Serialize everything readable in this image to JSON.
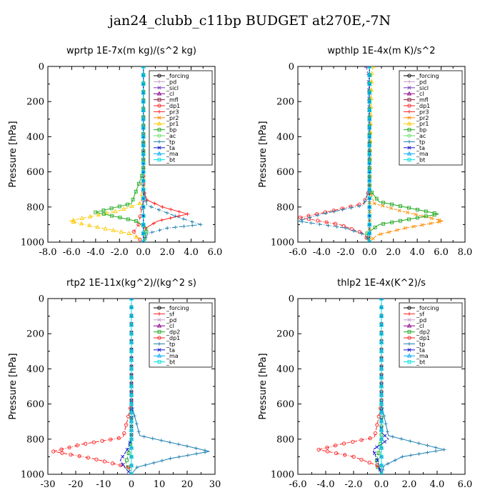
{
  "title": "jan24_clubb_c11bp  BUDGET at270E,-7N",
  "colors": {
    "_forcing": "#000000",
    "_pd": "#c69cc6",
    "_sicl": "#7a3db8",
    "_cl": "#8b008b",
    "_mfl": "#8b1a3a",
    "_dp1": "#ff2020",
    "_pr3": "#ff2020",
    "_pr2": "#ff8c00",
    "_pr1": "#ffc800",
    "_bp": "#22aa22",
    "_ac": "#66dd66",
    "_tp": "#1e7fb0",
    "_ta": "#1010cc",
    "_ma": "#00aaff",
    "_bt": "#00dddd",
    "_sf": "#ff2020",
    "_dp2": "#22aa22"
  },
  "chart_data": [
    {
      "type": "line",
      "title": "wprtp  1E-7x(m kg)/(s^2 kg)",
      "ylabel": "Pressure [hPa]",
      "xlim": [
        -8,
        6
      ],
      "ylim": [
        1000,
        0
      ],
      "xticks": [
        "-8.0",
        "-6.0",
        "-4.0",
        "-2.0",
        "0.0",
        "2.0",
        "4.0",
        "6.0"
      ],
      "yticks": [
        "0",
        "200",
        "400",
        "600",
        "800",
        "1000"
      ],
      "legend_position": "top-right",
      "legend": [
        "_forcing",
        "_pd",
        "_sicl",
        "_cl",
        "_mfl",
        "_dp1",
        "_pr3",
        "_pr2",
        "_pr1",
        "_bp",
        "_ac",
        "_tp",
        "_ta",
        "_ma",
        "_bt"
      ],
      "series": [
        {
          "name": "_forcing",
          "x": [
            0,
            0,
            0,
            0,
            0,
            0,
            0
          ],
          "y": [
            0,
            200,
            400,
            600,
            800,
            900,
            1000
          ]
        },
        {
          "name": "_pd",
          "x": [
            0,
            0,
            0,
            0,
            0
          ],
          "y": [
            0,
            300,
            600,
            900,
            1000
          ]
        },
        {
          "name": "_sicl",
          "x": [
            0,
            0,
            0,
            0,
            0
          ],
          "y": [
            0,
            300,
            600,
            900,
            1000
          ]
        },
        {
          "name": "_cl",
          "x": [
            0,
            0,
            0,
            0,
            0
          ],
          "y": [
            0,
            300,
            600,
            900,
            1000
          ]
        },
        {
          "name": "_mfl",
          "x": [
            0,
            0,
            0,
            0,
            0
          ],
          "y": [
            0,
            300,
            600,
            900,
            1000
          ]
        },
        {
          "name": "_dp1",
          "x": [
            0,
            0,
            0,
            -0.4,
            -0.8,
            -0.6,
            -0.3,
            0
          ],
          "y": [
            0,
            600,
            760,
            900,
            940,
            965,
            985,
            1000
          ]
        },
        {
          "name": "_pr3",
          "x": [
            0,
            0,
            0.3,
            1.6,
            3.7,
            1.2,
            0.2,
            0,
            0
          ],
          "y": [
            0,
            700,
            760,
            800,
            840,
            880,
            920,
            960,
            1000
          ]
        },
        {
          "name": "_pr2",
          "x": [
            0,
            0,
            0,
            0,
            0
          ],
          "y": [
            0,
            300,
            600,
            900,
            1000
          ]
        },
        {
          "name": "_pr1",
          "x": [
            0,
            0,
            -0.3,
            -2.0,
            -6.2,
            -3.5,
            -1.2,
            -0.3,
            0
          ],
          "y": [
            0,
            700,
            780,
            820,
            880,
            920,
            950,
            980,
            1000
          ]
        },
        {
          "name": "_bp",
          "x": [
            0,
            0,
            -1.0,
            -4.0,
            -0.6,
            0.3,
            0.2,
            0
          ],
          "y": [
            0,
            600,
            780,
            830,
            880,
            920,
            960,
            1000
          ]
        },
        {
          "name": "_ac",
          "x": [
            0,
            0,
            0,
            0,
            0
          ],
          "y": [
            0,
            300,
            600,
            900,
            1000
          ]
        },
        {
          "name": "_tp",
          "x": [
            0,
            0,
            0.3,
            3.0,
            4.8,
            2.0,
            0.4,
            0
          ],
          "y": [
            0,
            700,
            790,
            860,
            900,
            920,
            950,
            1000
          ]
        },
        {
          "name": "_ta",
          "x": [
            0,
            0,
            0,
            0,
            0
          ],
          "y": [
            0,
            300,
            600,
            900,
            1000
          ]
        },
        {
          "name": "_ma",
          "x": [
            0,
            0,
            0,
            0,
            0
          ],
          "y": [
            0,
            300,
            600,
            900,
            1000
          ]
        },
        {
          "name": "_bt",
          "x": [
            0,
            0,
            0,
            0,
            0
          ],
          "y": [
            0,
            300,
            600,
            900,
            1000
          ]
        }
      ]
    },
    {
      "type": "line",
      "title": "wpthlp  1E-4x(m K)/s^2",
      "ylabel": "Pressure [hPa]",
      "xlim": [
        -6,
        8
      ],
      "ylim": [
        1000,
        0
      ],
      "xticks": [
        "-6.0",
        "-4.0",
        "-2.0",
        "0.0",
        "2.0",
        "4.0",
        "6.0",
        "8.0"
      ],
      "yticks": [
        "0",
        "200",
        "400",
        "600",
        "800",
        "1000"
      ],
      "legend_position": "top-right",
      "legend": [
        "_forcing",
        "_pd",
        "_sicl",
        "_cl",
        "_mfl",
        "_dp1",
        "_pr3",
        "_pr2",
        "_pr1",
        "_bp",
        "_ac",
        "_tp",
        "_ta",
        "_ma",
        "_bt"
      ],
      "series": [
        {
          "name": "_forcing",
          "x": [
            0,
            0,
            0,
            0,
            0
          ],
          "y": [
            0,
            300,
            600,
            900,
            1000
          ]
        },
        {
          "name": "_pd",
          "x": [
            0,
            0,
            0,
            0,
            0
          ],
          "y": [
            0,
            300,
            600,
            900,
            1000
          ]
        },
        {
          "name": "_sicl",
          "x": [
            -0.3,
            -0.1,
            0,
            0,
            0
          ],
          "y": [
            0,
            40,
            300,
            700,
            1000
          ]
        },
        {
          "name": "_cl",
          "x": [
            0,
            0,
            0,
            0,
            0
          ],
          "y": [
            0,
            300,
            600,
            900,
            1000
          ]
        },
        {
          "name": "_mfl",
          "x": [
            0,
            0,
            0,
            0,
            0
          ],
          "y": [
            0,
            300,
            600,
            900,
            1000
          ]
        },
        {
          "name": "_dp1",
          "x": [
            0,
            0,
            -0.5,
            -3.0,
            -5.8,
            -2.5,
            -0.5,
            0
          ],
          "y": [
            0,
            700,
            780,
            820,
            860,
            900,
            950,
            1000
          ]
        },
        {
          "name": "_pr3",
          "x": [
            0,
            0,
            0,
            0,
            0
          ],
          "y": [
            0,
            300,
            600,
            900,
            1000
          ]
        },
        {
          "name": "_pr2",
          "x": [
            0,
            0,
            0.4,
            2.5,
            6.2,
            3.0,
            0.6,
            0
          ],
          "y": [
            0,
            700,
            780,
            820,
            880,
            920,
            960,
            1000
          ]
        },
        {
          "name": "_pr1",
          "x": [
            0.3,
            0.2,
            0.1,
            0,
            0
          ],
          "y": [
            0,
            40,
            300,
            700,
            1000
          ]
        },
        {
          "name": "_bp",
          "x": [
            0,
            0,
            0.8,
            5.8,
            0.8,
            -0.2,
            0
          ],
          "y": [
            0,
            700,
            770,
            840,
            900,
            950,
            1000
          ]
        },
        {
          "name": "_ac",
          "x": [
            0,
            0,
            0,
            0,
            0
          ],
          "y": [
            0,
            300,
            600,
            900,
            1000
          ]
        },
        {
          "name": "_tp",
          "x": [
            0,
            0,
            -0.5,
            -4.0,
            -6.0,
            -2.0,
            -0.3,
            0
          ],
          "y": [
            0,
            700,
            790,
            840,
            880,
            920,
            960,
            1000
          ]
        },
        {
          "name": "_ta",
          "x": [
            0,
            0,
            0,
            0,
            0
          ],
          "y": [
            0,
            300,
            600,
            900,
            1000
          ]
        },
        {
          "name": "_ma",
          "x": [
            0,
            0,
            0,
            0,
            0
          ],
          "y": [
            0,
            300,
            600,
            900,
            1000
          ]
        },
        {
          "name": "_bt",
          "x": [
            0,
            0,
            0,
            0,
            0
          ],
          "y": [
            0,
            300,
            600,
            900,
            1000
          ]
        }
      ]
    },
    {
      "type": "line",
      "title": "rtp2  1E-11x(kg^2)/(kg^2 s)",
      "ylabel": "Pressure [hPa]",
      "xlim": [
        -30,
        30
      ],
      "ylim": [
        1000,
        0
      ],
      "xticks": [
        "-30",
        "-20",
        "-10",
        "0",
        "10",
        "20",
        "30"
      ],
      "yticks": [
        "0",
        "200",
        "400",
        "600",
        "800",
        "1000"
      ],
      "legend_position": "top-right",
      "legend": [
        "_forcing",
        "_sf",
        "_pd",
        "_cl",
        "_dp2",
        "_dp1",
        "_tp",
        "_ta",
        "_ma",
        "_bt"
      ],
      "series": [
        {
          "name": "_forcing",
          "x": [
            0,
            0,
            0,
            0,
            0,
            0,
            0
          ],
          "y": [
            0,
            200,
            400,
            600,
            800,
            900,
            1000
          ]
        },
        {
          "name": "_sf",
          "x": [
            0,
            0,
            0,
            0,
            0
          ],
          "y": [
            0,
            300,
            600,
            900,
            1000
          ]
        },
        {
          "name": "_pd",
          "x": [
            0,
            0,
            0,
            0,
            0
          ],
          "y": [
            0,
            300,
            600,
            900,
            1000
          ]
        },
        {
          "name": "_cl",
          "x": [
            0,
            0,
            0,
            0,
            0
          ],
          "y": [
            0,
            300,
            600,
            900,
            1000
          ]
        },
        {
          "name": "_dp2",
          "x": [
            0,
            0,
            -1,
            -2,
            -0.5,
            0
          ],
          "y": [
            0,
            800,
            880,
            940,
            980,
            1000
          ]
        },
        {
          "name": "_dp1",
          "x": [
            0,
            0,
            -3,
            -18,
            -28,
            -14,
            -1,
            0
          ],
          "y": [
            0,
            600,
            790,
            830,
            870,
            910,
            960,
            1000
          ]
        },
        {
          "name": "_tp",
          "x": [
            0,
            0,
            3,
            20,
            28,
            14,
            2,
            0
          ],
          "y": [
            0,
            600,
            780,
            840,
            870,
            910,
            960,
            1000
          ]
        },
        {
          "name": "_ta",
          "x": [
            0,
            0,
            -1.5,
            -4,
            -2,
            0
          ],
          "y": [
            0,
            800,
            860,
            920,
            970,
            1000
          ]
        },
        {
          "name": "_ma",
          "x": [
            0,
            0,
            0,
            0,
            0
          ],
          "y": [
            0,
            300,
            600,
            900,
            1000
          ]
        },
        {
          "name": "_bt",
          "x": [
            0,
            0,
            0,
            0,
            0
          ],
          "y": [
            0,
            300,
            600,
            900,
            1000
          ]
        }
      ]
    },
    {
      "type": "line",
      "title": "thlp2  1E-4x(K^2)/s",
      "ylabel": "Pressure [hPa]",
      "xlim": [
        -6,
        6
      ],
      "ylim": [
        1000,
        0
      ],
      "xticks": [
        "-6.0",
        "-4.0",
        "-2.0",
        "0.0",
        "2.0",
        "4.0",
        "6.0"
      ],
      "yticks": [
        "0",
        "200",
        "400",
        "600",
        "800",
        "1000"
      ],
      "legend_position": "top-right",
      "legend": [
        "_forcing",
        "_sf",
        "_pd",
        "_cl",
        "_dp2",
        "_dp1",
        "_tp",
        "_ta",
        "_ma",
        "_bt"
      ],
      "series": [
        {
          "name": "_forcing",
          "x": [
            0,
            0,
            0,
            0,
            0,
            0,
            0
          ],
          "y": [
            0,
            200,
            400,
            600,
            800,
            900,
            1000
          ]
        },
        {
          "name": "_sf",
          "x": [
            0,
            0,
            0,
            0,
            0
          ],
          "y": [
            0,
            300,
            600,
            900,
            1000
          ]
        },
        {
          "name": "_pd",
          "x": [
            0,
            0,
            0,
            0,
            0
          ],
          "y": [
            0,
            300,
            600,
            900,
            1000
          ]
        },
        {
          "name": "_cl",
          "x": [
            0,
            0,
            0,
            0,
            0
          ],
          "y": [
            0,
            300,
            600,
            900,
            1000
          ]
        },
        {
          "name": "_dp2",
          "x": [
            0,
            0,
            -0.2,
            -0.4,
            0
          ],
          "y": [
            0,
            800,
            880,
            940,
            1000
          ]
        },
        {
          "name": "_dp1",
          "x": [
            0,
            0,
            -0.5,
            -3.0,
            -4.5,
            -2.0,
            -0.3,
            0
          ],
          "y": [
            0,
            600,
            790,
            830,
            860,
            900,
            950,
            1000
          ]
        },
        {
          "name": "_tp",
          "x": [
            0,
            0,
            0.5,
            3.0,
            4.5,
            1.5,
            0.2,
            0
          ],
          "y": [
            0,
            600,
            780,
            830,
            860,
            900,
            950,
            1000
          ]
        },
        {
          "name": "_ta",
          "x": [
            0,
            0,
            0.5,
            -0.6,
            -0.3,
            0
          ],
          "y": [
            0,
            760,
            800,
            860,
            920,
            1000
          ]
        },
        {
          "name": "_ma",
          "x": [
            0,
            0,
            0,
            0,
            0
          ],
          "y": [
            0,
            300,
            600,
            900,
            1000
          ]
        },
        {
          "name": "_bt",
          "x": [
            0,
            0,
            0,
            0,
            0
          ],
          "y": [
            0,
            300,
            600,
            900,
            1000
          ]
        }
      ]
    }
  ]
}
